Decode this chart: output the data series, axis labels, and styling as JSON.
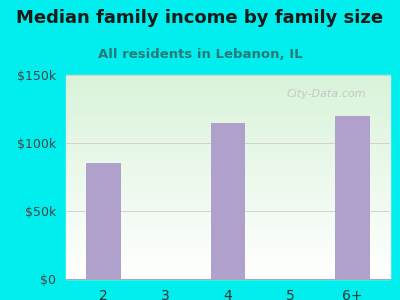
{
  "title": "Median family income by family size",
  "subtitle": "All residents in Lebanon, IL",
  "categories": [
    "2",
    "3",
    "4",
    "5",
    "6+"
  ],
  "values": [
    85000,
    0,
    115000,
    0,
    120000
  ],
  "bar_color": "#b0a0cc",
  "bg_color": "#00EEEE",
  "ylim": [
    0,
    150000
  ],
  "yticks": [
    0,
    50000,
    100000,
    150000
  ],
  "ytick_labels": [
    "$0",
    "$50k",
    "$100k",
    "$150k"
  ],
  "title_color": "#1a1a1a",
  "subtitle_color": "#2a7a7a",
  "watermark": "City-Data.com",
  "title_fontsize": 13,
  "subtitle_fontsize": 9.5,
  "tick_fontsize": 9,
  "xtick_fontsize": 10
}
